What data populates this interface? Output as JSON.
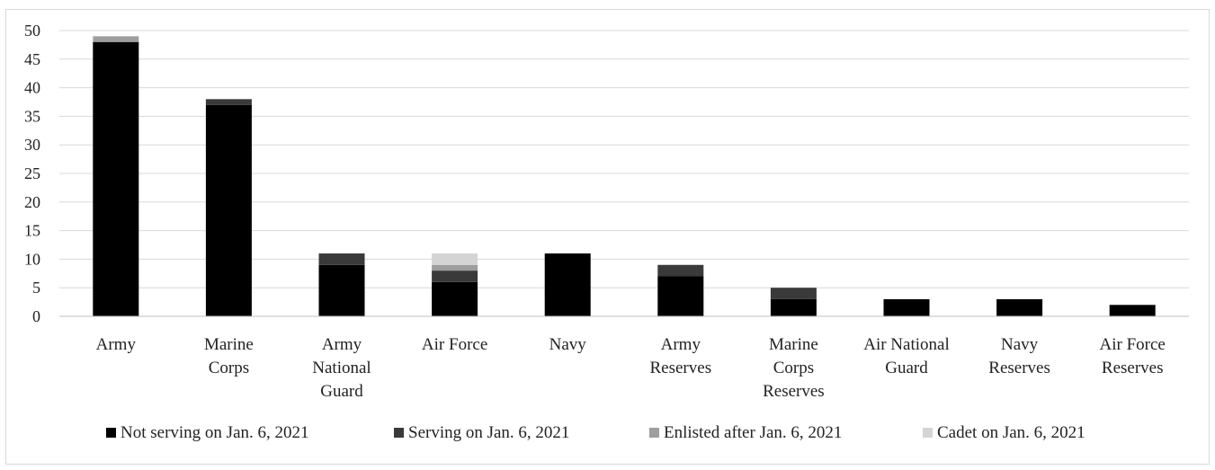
{
  "chart_data": {
    "type": "bar",
    "stacked": true,
    "title": "",
    "xlabel": "",
    "ylabel": "",
    "ylim": [
      0,
      50
    ],
    "yticks": [
      0,
      5,
      10,
      15,
      20,
      25,
      30,
      35,
      40,
      45,
      50
    ],
    "grid": true,
    "legend_position": "bottom",
    "categories": [
      [
        "Army"
      ],
      [
        "Marine",
        "Corps"
      ],
      [
        "Army",
        "National",
        "Guard"
      ],
      [
        "Air Force"
      ],
      [
        "Navy"
      ],
      [
        "Army",
        "Reserves"
      ],
      [
        "Marine",
        "Corps",
        "Reserves"
      ],
      [
        "Air National",
        "Guard"
      ],
      [
        "Navy",
        "Reserves"
      ],
      [
        "Air Force",
        "Reserves"
      ]
    ],
    "series": [
      {
        "name": "Not serving on Jan. 6, 2021",
        "color": "#000000",
        "values": [
          48,
          37,
          9,
          6,
          11,
          7,
          3,
          3,
          3,
          2
        ]
      },
      {
        "name": "Serving on Jan. 6, 2021",
        "color": "#3a3a3a",
        "values": [
          0,
          1,
          2,
          2,
          0,
          2,
          2,
          0,
          0,
          0
        ]
      },
      {
        "name": "Enlisted after Jan. 6, 2021",
        "color": "#9e9e9e",
        "values": [
          1,
          0,
          0,
          1,
          0,
          0,
          0,
          0,
          0,
          0
        ]
      },
      {
        "name": "Cadet on Jan. 6, 2021",
        "color": "#d4d4d4",
        "values": [
          0,
          0,
          0,
          2,
          0,
          0,
          0,
          0,
          0,
          0
        ]
      }
    ]
  }
}
